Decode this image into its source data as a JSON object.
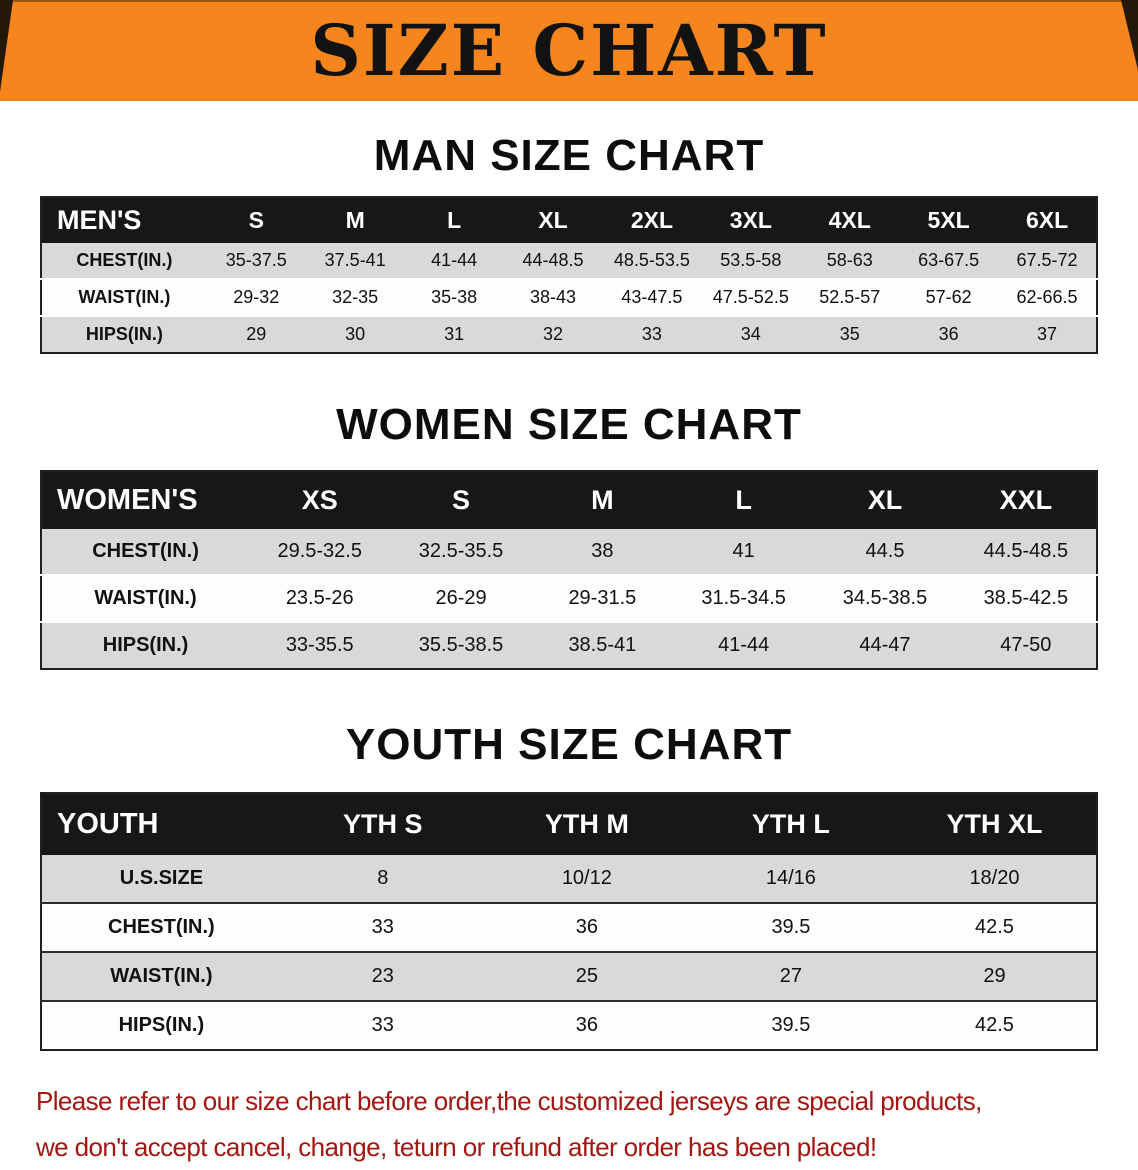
{
  "banner": {
    "title": "SIZE CHART"
  },
  "colors": {
    "banner_bg": "#f5851c",
    "header_bar": "#171717",
    "row_shaded": "#d9d9d9",
    "row_plain": "#fdfdfd",
    "heading_text": "#0d0d0d",
    "disclaimer_text": "#a31712"
  },
  "sections": [
    {
      "id": "men",
      "heading": "MAN SIZE CHART",
      "table": {
        "header": [
          "MEN'S",
          "S",
          "M",
          "L",
          "XL",
          "2XL",
          "3XL",
          "4XL",
          "5XL",
          "6XL"
        ],
        "rows": [
          [
            "CHEST(IN.)",
            "35-37.5",
            "37.5-41",
            "41-44",
            "44-48.5",
            "48.5-53.5",
            "53.5-58",
            "58-63",
            "63-67.5",
            "67.5-72"
          ],
          [
            "WAIST(IN.)",
            "29-32",
            "32-35",
            "35-38",
            "38-43",
            "43-47.5",
            "47.5-52.5",
            "52.5-57",
            "57-62",
            "62-66.5"
          ],
          [
            "HIPS(IN.)",
            "29",
            "30",
            "31",
            "32",
            "33",
            "34",
            "35",
            "36",
            "37"
          ]
        ]
      }
    },
    {
      "id": "women",
      "heading": "WOMEN SIZE CHART",
      "table": {
        "header": [
          "WOMEN'S",
          "XS",
          "S",
          "M",
          "L",
          "XL",
          "XXL"
        ],
        "rows": [
          [
            "CHEST(IN.)",
            "29.5-32.5",
            "32.5-35.5",
            "38",
            "41",
            "44.5",
            "44.5-48.5"
          ],
          [
            "WAIST(IN.)",
            "23.5-26",
            "26-29",
            "29-31.5",
            "31.5-34.5",
            "34.5-38.5",
            "38.5-42.5"
          ],
          [
            "HIPS(IN.)",
            "33-35.5",
            "35.5-38.5",
            "38.5-41",
            "41-44",
            "44-47",
            "47-50"
          ]
        ]
      }
    },
    {
      "id": "youth",
      "heading": "YOUTH SIZE CHART",
      "table": {
        "header": [
          "YOUTH",
          "YTH S",
          "YTH M",
          "YTH L",
          "YTH XL"
        ],
        "rows": [
          [
            "U.S.SIZE",
            "8",
            "10/12",
            "14/16",
            "18/20"
          ],
          [
            "CHEST(IN.)",
            "33",
            "36",
            "39.5",
            "42.5"
          ],
          [
            "WAIST(IN.)",
            "23",
            "25",
            "27",
            "29"
          ],
          [
            "HIPS(IN.)",
            "33",
            "36",
            "39.5",
            "42.5"
          ]
        ]
      }
    }
  ],
  "disclaimer": {
    "line1": "Please refer to our size chart before order,the customized jerseys are special products,",
    "line2": "we don't accept cancel, change, teturn or refund after order has been placed!"
  }
}
